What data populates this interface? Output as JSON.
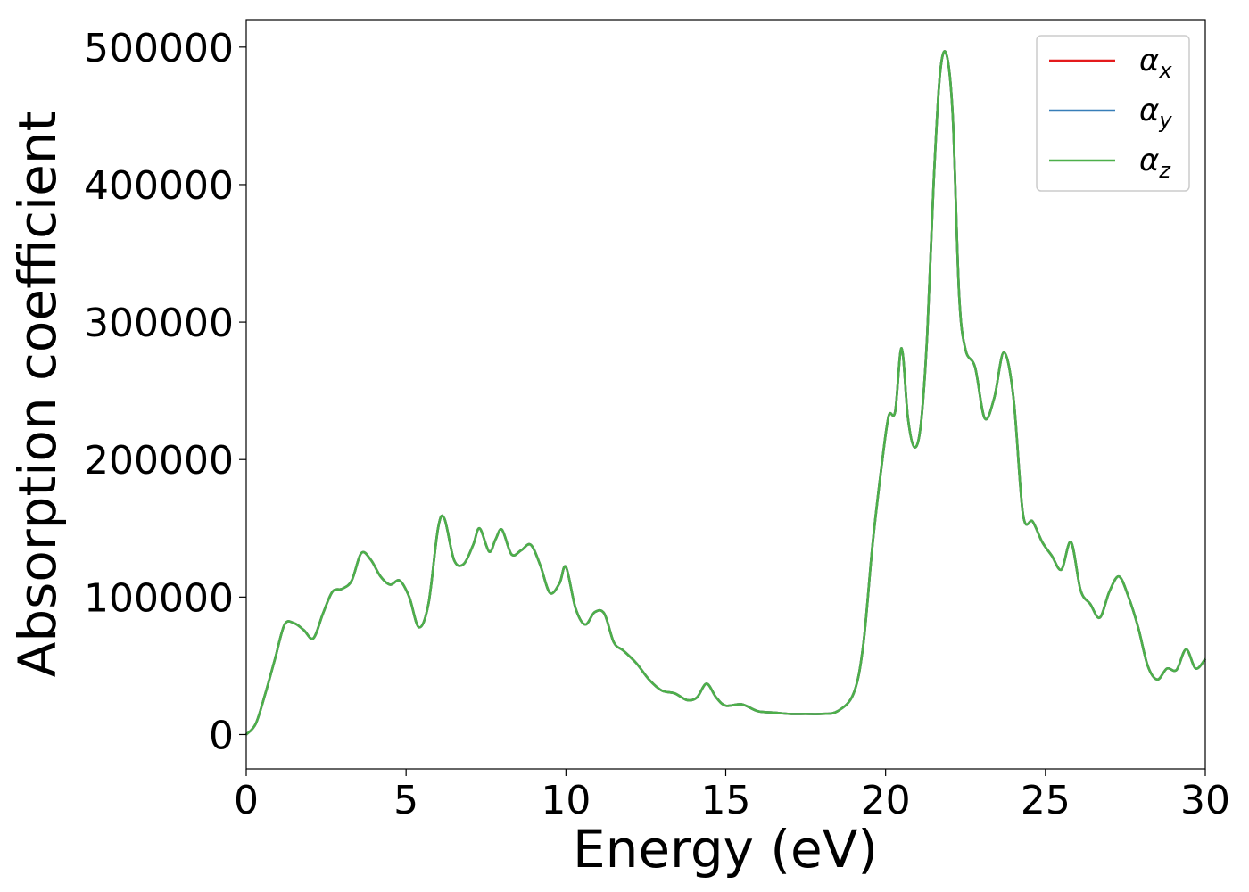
{
  "chart_data": {
    "type": "line",
    "title": "",
    "xlabel": "Energy (eV)",
    "ylabel": "Absorption coefficient",
    "xlim": [
      0,
      30
    ],
    "ylim": [
      -25000,
      520000
    ],
    "xticks": [
      0,
      5,
      10,
      15,
      20,
      25,
      30
    ],
    "xtick_labels": [
      "0",
      "5",
      "10",
      "15",
      "20",
      "25",
      "30"
    ],
    "yticks": [
      0,
      100000,
      200000,
      300000,
      400000,
      500000
    ],
    "ytick_labels": [
      "0",
      "100000",
      "200000",
      "300000",
      "400000",
      "500000"
    ],
    "grid": false,
    "legend_position": "top-right",
    "series": [
      {
        "name": "αx",
        "symbol": "α",
        "subscript": "x",
        "color": "#e41a1c",
        "x": [
          0,
          0.3,
          0.6,
          0.9,
          1.2,
          1.5,
          1.8,
          2.1,
          2.4,
          2.7,
          3.0,
          3.3,
          3.6,
          3.9,
          4.2,
          4.5,
          4.8,
          5.1,
          5.4,
          5.7,
          6.0,
          6.2,
          6.5,
          6.8,
          7.1,
          7.3,
          7.6,
          7.8,
          8.0,
          8.3,
          8.6,
          8.9,
          9.2,
          9.5,
          9.8,
          10.0,
          10.3,
          10.6,
          10.9,
          11.2,
          11.5,
          11.8,
          12.2,
          12.6,
          13.0,
          13.4,
          13.8,
          14.1,
          14.4,
          14.7,
          15.0,
          15.5,
          16.0,
          16.5,
          17.0,
          17.5,
          18.0,
          18.5,
          19.0,
          19.3,
          19.6,
          19.9,
          20.1,
          20.3,
          20.5,
          20.7,
          20.9,
          21.1,
          21.3,
          21.5,
          21.7,
          21.9,
          22.1,
          22.3,
          22.5,
          22.8,
          23.1,
          23.4,
          23.7,
          24.0,
          24.3,
          24.6,
          24.9,
          25.2,
          25.5,
          25.8,
          26.1,
          26.4,
          26.7,
          27.0,
          27.3,
          27.6,
          27.9,
          28.2,
          28.5,
          28.8,
          29.1,
          29.4,
          29.7,
          30.0
        ],
        "y": [
          0,
          8000,
          30000,
          55000,
          80000,
          81000,
          76000,
          70000,
          88000,
          104000,
          106000,
          112000,
          132000,
          127000,
          115000,
          109000,
          112000,
          100000,
          78000,
          95000,
          150000,
          157000,
          127000,
          124000,
          138000,
          150000,
          133000,
          142000,
          149000,
          131000,
          134000,
          138000,
          123000,
          103000,
          110000,
          122000,
          92000,
          80000,
          89000,
          88000,
          67000,
          61000,
          52000,
          40000,
          32000,
          30000,
          25000,
          27000,
          37000,
          27000,
          21000,
          22000,
          17000,
          16000,
          15000,
          15000,
          15000,
          17000,
          30000,
          65000,
          140000,
          200000,
          232000,
          235000,
          281000,
          230000,
          209000,
          225000,
          290000,
          400000,
          480000,
          495000,
          450000,
          320000,
          280000,
          267000,
          230000,
          245000,
          278000,
          245000,
          160000,
          155000,
          140000,
          130000,
          120000,
          140000,
          105000,
          95000,
          85000,
          104000,
          115000,
          100000,
          78000,
          50000,
          40000,
          48000,
          47000,
          62000,
          48000,
          55000
        ]
      },
      {
        "name": "αy",
        "symbol": "α",
        "subscript": "y",
        "color": "#377eb8",
        "x": [
          0,
          0.3,
          0.6,
          0.9,
          1.2,
          1.5,
          1.8,
          2.1,
          2.4,
          2.7,
          3.0,
          3.3,
          3.6,
          3.9,
          4.2,
          4.5,
          4.8,
          5.1,
          5.4,
          5.7,
          6.0,
          6.2,
          6.5,
          6.8,
          7.1,
          7.3,
          7.6,
          7.8,
          8.0,
          8.3,
          8.6,
          8.9,
          9.2,
          9.5,
          9.8,
          10.0,
          10.3,
          10.6,
          10.9,
          11.2,
          11.5,
          11.8,
          12.2,
          12.6,
          13.0,
          13.4,
          13.8,
          14.1,
          14.4,
          14.7,
          15.0,
          15.5,
          16.0,
          16.5,
          17.0,
          17.5,
          18.0,
          18.5,
          19.0,
          19.3,
          19.6,
          19.9,
          20.1,
          20.3,
          20.5,
          20.7,
          20.9,
          21.1,
          21.3,
          21.5,
          21.7,
          21.9,
          22.1,
          22.3,
          22.5,
          22.8,
          23.1,
          23.4,
          23.7,
          24.0,
          24.3,
          24.6,
          24.9,
          25.2,
          25.5,
          25.8,
          26.1,
          26.4,
          26.7,
          27.0,
          27.3,
          27.6,
          27.9,
          28.2,
          28.5,
          28.8,
          29.1,
          29.4,
          29.7,
          30.0
        ],
        "y": [
          0,
          8000,
          30000,
          55000,
          80000,
          81000,
          76000,
          70000,
          88000,
          104000,
          106000,
          112000,
          132000,
          127000,
          115000,
          109000,
          112000,
          100000,
          78000,
          95000,
          150000,
          157000,
          127000,
          124000,
          138000,
          150000,
          133000,
          142000,
          149000,
          131000,
          134000,
          138000,
          123000,
          103000,
          110000,
          122000,
          92000,
          80000,
          89000,
          88000,
          67000,
          61000,
          52000,
          40000,
          32000,
          30000,
          25000,
          27000,
          37000,
          27000,
          21000,
          22000,
          17000,
          16000,
          15000,
          15000,
          15000,
          17000,
          30000,
          65000,
          140000,
          200000,
          232000,
          235000,
          281000,
          230000,
          209000,
          225000,
          290000,
          400000,
          480000,
          495000,
          450000,
          320000,
          280000,
          267000,
          230000,
          245000,
          278000,
          245000,
          160000,
          155000,
          140000,
          130000,
          120000,
          140000,
          105000,
          95000,
          85000,
          104000,
          115000,
          100000,
          78000,
          50000,
          40000,
          48000,
          47000,
          62000,
          48000,
          55000
        ]
      },
      {
        "name": "αz",
        "symbol": "α",
        "subscript": "z",
        "color": "#4daf4a",
        "x": [
          0,
          0.3,
          0.6,
          0.9,
          1.2,
          1.5,
          1.8,
          2.1,
          2.4,
          2.7,
          3.0,
          3.3,
          3.6,
          3.9,
          4.2,
          4.5,
          4.8,
          5.1,
          5.4,
          5.7,
          6.0,
          6.2,
          6.5,
          6.8,
          7.1,
          7.3,
          7.6,
          7.8,
          8.0,
          8.3,
          8.6,
          8.9,
          9.2,
          9.5,
          9.8,
          10.0,
          10.3,
          10.6,
          10.9,
          11.2,
          11.5,
          11.8,
          12.2,
          12.6,
          13.0,
          13.4,
          13.8,
          14.1,
          14.4,
          14.7,
          15.0,
          15.5,
          16.0,
          16.5,
          17.0,
          17.5,
          18.0,
          18.5,
          19.0,
          19.3,
          19.6,
          19.9,
          20.1,
          20.3,
          20.5,
          20.7,
          20.9,
          21.1,
          21.3,
          21.5,
          21.7,
          21.9,
          22.1,
          22.3,
          22.5,
          22.8,
          23.1,
          23.4,
          23.7,
          24.0,
          24.3,
          24.6,
          24.9,
          25.2,
          25.5,
          25.8,
          26.1,
          26.4,
          26.7,
          27.0,
          27.3,
          27.6,
          27.9,
          28.2,
          28.5,
          28.8,
          29.1,
          29.4,
          29.7,
          30.0
        ],
        "y": [
          0,
          8000,
          30000,
          55000,
          80000,
          81000,
          76000,
          70000,
          88000,
          104000,
          106000,
          112000,
          132000,
          127000,
          115000,
          109000,
          112000,
          100000,
          78000,
          95000,
          150000,
          157000,
          127000,
          124000,
          138000,
          150000,
          133000,
          142000,
          149000,
          131000,
          134000,
          138000,
          123000,
          103000,
          110000,
          122000,
          92000,
          80000,
          89000,
          88000,
          67000,
          61000,
          52000,
          40000,
          32000,
          30000,
          25000,
          27000,
          37000,
          27000,
          21000,
          22000,
          17000,
          16000,
          15000,
          15000,
          15000,
          17000,
          30000,
          65000,
          140000,
          200000,
          232000,
          235000,
          281000,
          230000,
          209000,
          225000,
          290000,
          400000,
          480000,
          495000,
          450000,
          320000,
          280000,
          267000,
          230000,
          245000,
          278000,
          245000,
          160000,
          155000,
          140000,
          130000,
          120000,
          140000,
          105000,
          95000,
          85000,
          104000,
          115000,
          100000,
          78000,
          50000,
          40000,
          48000,
          47000,
          62000,
          48000,
          55000
        ]
      }
    ]
  }
}
